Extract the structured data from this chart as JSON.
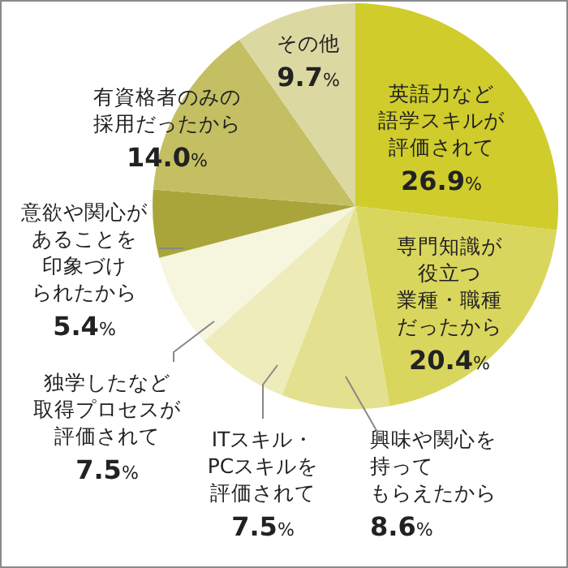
{
  "chart_data": {
    "type": "pie",
    "categories": [
      "英語力など語学スキルが評価されて",
      "専門知識が役立つ業種・職種だったから",
      "興味や関心を持ってもらえたから",
      "ITスキル・PCスキルを評価されて",
      "独学したなど取得プロセスが評価されて",
      "意欲や関心があることを印象づけられたから",
      "有資格者のみの採用だったから",
      "その他"
    ],
    "values": [
      26.9,
      20.4,
      8.6,
      7.5,
      7.5,
      5.4,
      14.0,
      9.7
    ],
    "value_labels": [
      "26.9%",
      "20.4%",
      "8.6%",
      "7.5%",
      "7.5%",
      "5.4%",
      "14.0%",
      "9.7%"
    ],
    "colors": [
      "#cfcc2c",
      "#d9d65e",
      "#e3e18f",
      "#edecba",
      "#f6f5dd",
      "#a9a53a",
      "#c3bf62",
      "#dcd8a2"
    ]
  }
}
